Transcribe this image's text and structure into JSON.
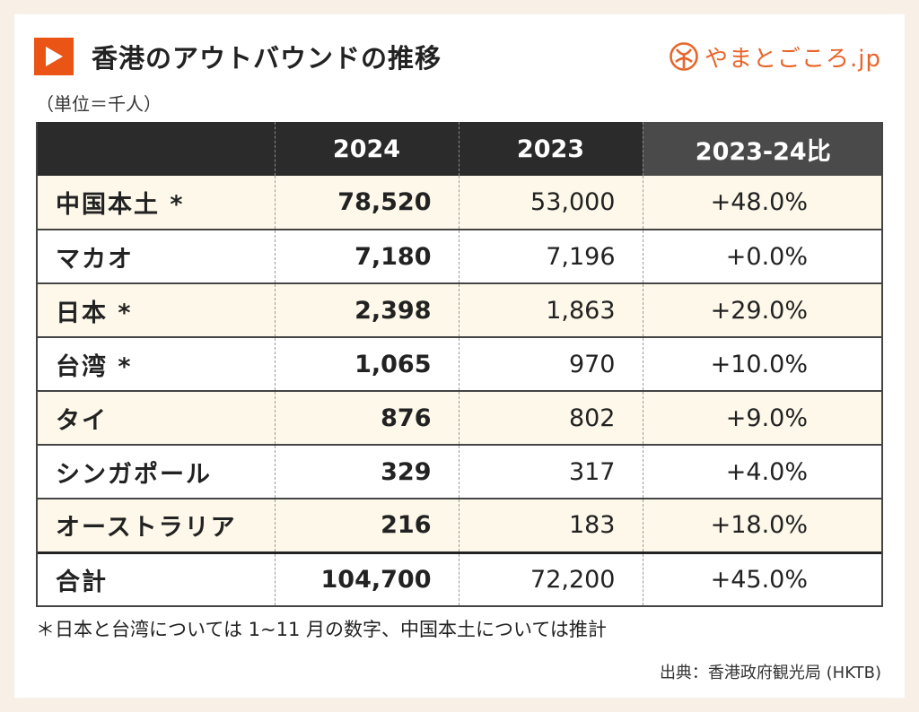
{
  "header": {
    "title": "香港のアウトバウンドの推移",
    "logo_text": "やまとごころ.jp",
    "unit": "（単位＝千人）"
  },
  "table": {
    "columns": [
      "",
      "2024",
      "2023",
      "2023-24比"
    ],
    "rows": [
      {
        "name": "中国本土 *",
        "v2024": "78,520",
        "v2023": "53,000",
        "ratio": "+48.0%"
      },
      {
        "name": "マカオ",
        "v2024": "7,180",
        "v2023": "7,196",
        "ratio": "+0.0%"
      },
      {
        "name": "日本 *",
        "v2024": "2,398",
        "v2023": "1,863",
        "ratio": "+29.0%"
      },
      {
        "name": "台湾 *",
        "v2024": "1,065",
        "v2023": "970",
        "ratio": "+10.0%"
      },
      {
        "name": "タイ",
        "v2024": "876",
        "v2023": "802",
        "ratio": "+9.0%"
      },
      {
        "name": "シンガポール",
        "v2024": "329",
        "v2023": "317",
        "ratio": "+4.0%"
      },
      {
        "name": "オーストラリア",
        "v2024": "216",
        "v2023": "183",
        "ratio": "+18.0%"
      }
    ],
    "total": {
      "name": "合計",
      "v2024": "104,700",
      "v2023": "72,200",
      "ratio": "+45.0%"
    }
  },
  "footer": {
    "note": "＊日本と台湾については 1~11 月の数字、中国本土については推計",
    "source": "出典：香港政府観光局 (HKTB)"
  },
  "colors": {
    "accent": "#ea5414",
    "header_bg": "#2b2b2b",
    "row_highlight": "#fdf8e9"
  }
}
